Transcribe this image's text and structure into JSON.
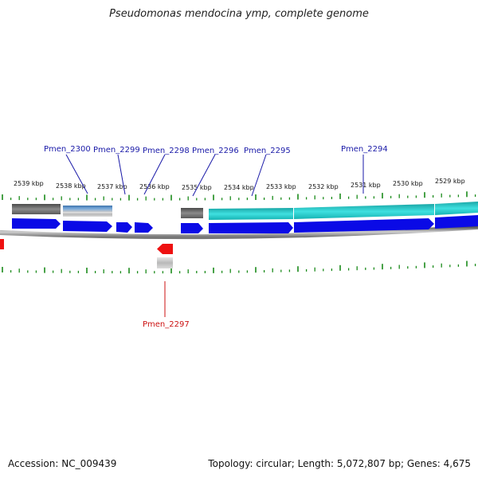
{
  "title": "Pseudomonas mendocina ymp, complete genome",
  "footer": {
    "accession_label": "Accession:",
    "accession": "NC_009439",
    "summary": "Topology: circular; Length: 5,072,807 bp; Genes: 4,675"
  },
  "colors": {
    "cds": "#0a0ae6",
    "highlight_gene": "#ee1111",
    "ruler_ticks": "#1a8a1a",
    "label_forward": "#1a1aa8",
    "label_reverse": "#cc1111",
    "feature_cyan": "#22c8c8",
    "feature_gray": "#666666",
    "feature_steel": "#4a7fb5"
  },
  "ruler": {
    "unit": "kbp",
    "ticks_kbp": [
      2539,
      2538,
      2537,
      2536,
      2535,
      2534,
      2533,
      2532,
      2531,
      2530,
      2529
    ]
  },
  "genes": [
    {
      "locus": "Pmen_2300",
      "strand": "forward"
    },
    {
      "locus": "Pmen_2299",
      "strand": "forward"
    },
    {
      "locus": "Pmen_2298",
      "strand": "forward"
    },
    {
      "locus": "Pmen_2296",
      "strand": "forward"
    },
    {
      "locus": "Pmen_2295",
      "strand": "forward"
    },
    {
      "locus": "Pmen_2294",
      "strand": "forward"
    },
    {
      "locus": "Pmen_2297",
      "strand": "reverse"
    }
  ]
}
